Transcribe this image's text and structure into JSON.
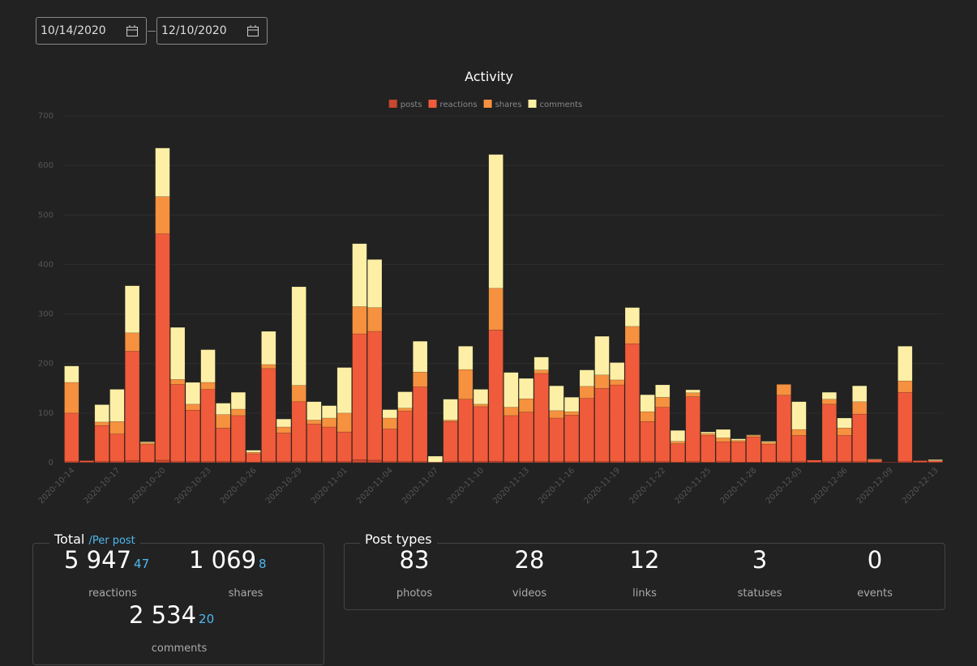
{
  "date_range": {
    "start": "10/14/2020",
    "end": "12/10/2020"
  },
  "chart_data": {
    "type": "stacked_bar",
    "title": "Activity",
    "categories": [
      "2020-10-14",
      null,
      null,
      "2020-10-17",
      null,
      null,
      "2020-10-20",
      null,
      null,
      "2020-10-23",
      null,
      null,
      "2020-10-26",
      null,
      null,
      "2020-10-29",
      null,
      null,
      "2020-11-01",
      null,
      null,
      "2020-11-04",
      null,
      null,
      "2020-11-07",
      null,
      null,
      "2020-11-10",
      null,
      null,
      "2020-11-13",
      null,
      null,
      "2020-11-16",
      null,
      null,
      "2020-11-19",
      null,
      null,
      "2020-11-22",
      null,
      null,
      "2020-11-25",
      null,
      null,
      "2020-11-28",
      null,
      null,
      "2020-12-03",
      null,
      null,
      "2020-12-06",
      null,
      null,
      "2020-12-09",
      null,
      null,
      "2020-12-13"
    ],
    "series": [
      {
        "name": "posts",
        "color": "#c8472f",
        "values": [
          2,
          1,
          2,
          2,
          4,
          1,
          5,
          2,
          2,
          2,
          2,
          2,
          1,
          2,
          2,
          2,
          2,
          2,
          2,
          6,
          5,
          2,
          2,
          2,
          1,
          2,
          2,
          2,
          3,
          2,
          2,
          2,
          2,
          2,
          2,
          2,
          2,
          2,
          2,
          2,
          1,
          2,
          1,
          2,
          1,
          1,
          1,
          2,
          2,
          1,
          2,
          2,
          2,
          1,
          1,
          2,
          1,
          1
        ]
      },
      {
        "name": "reactions",
        "color": "#ef5b3b",
        "values": [
          98,
          3,
          73,
          56,
          221,
          36,
          457,
          156,
          104,
          146,
          68,
          93,
          17,
          188,
          58,
          121,
          76,
          70,
          60,
          254,
          260,
          66,
          102,
          151,
          0,
          81,
          126,
          111,
          265,
          93,
          100,
          178,
          88,
          94,
          128,
          148,
          155,
          238,
          81,
          110,
          37,
          131,
          54,
          40,
          41,
          51,
          36,
          134,
          53,
          4,
          116,
          53,
          96,
          5,
          0,
          140,
          3,
          3
        ]
      },
      {
        "name": "shares",
        "color": "#f5913f",
        "values": [
          62,
          0,
          7,
          25,
          37,
          3,
          75,
          10,
          12,
          14,
          27,
          13,
          3,
          8,
          12,
          33,
          8,
          18,
          38,
          55,
          48,
          22,
          6,
          30,
          0,
          3,
          60,
          5,
          84,
          17,
          27,
          7,
          15,
          7,
          24,
          27,
          10,
          35,
          20,
          20,
          5,
          8,
          4,
          8,
          3,
          3,
          4,
          22,
          12,
          0,
          10,
          15,
          25,
          0,
          0,
          23,
          0,
          0
        ]
      },
      {
        "name": "comments",
        "color": "#fdf0a6",
        "values": [
          33,
          0,
          35,
          65,
          95,
          2,
          98,
          105,
          44,
          66,
          23,
          34,
          4,
          67,
          16,
          199,
          37,
          25,
          92,
          127,
          97,
          17,
          33,
          62,
          12,
          42,
          47,
          30,
          270,
          70,
          41,
          26,
          50,
          29,
          33,
          78,
          35,
          38,
          34,
          25,
          22,
          6,
          3,
          17,
          3,
          1,
          2,
          0,
          56,
          0,
          14,
          20,
          32,
          1,
          0,
          70,
          0,
          2
        ]
      }
    ],
    "ylim": [
      0,
      700
    ],
    "yticks": [
      0,
      100,
      200,
      300,
      400,
      500,
      600,
      700
    ],
    "grid": true
  },
  "totals": {
    "title": "Total",
    "per_post_label": "/Per post",
    "items": [
      {
        "value": "5 947",
        "per_post": "47",
        "label": "reactions"
      },
      {
        "value": "1 069",
        "per_post": "8",
        "label": "shares"
      },
      {
        "value": "2 534",
        "per_post": "20",
        "label": "comments"
      }
    ]
  },
  "post_types": {
    "title": "Post types",
    "items": [
      {
        "value": "83",
        "label": "photos"
      },
      {
        "value": "28",
        "label": "videos"
      },
      {
        "value": "12",
        "label": "links"
      },
      {
        "value": "3",
        "label": "statuses"
      },
      {
        "value": "0",
        "label": "events"
      }
    ]
  }
}
